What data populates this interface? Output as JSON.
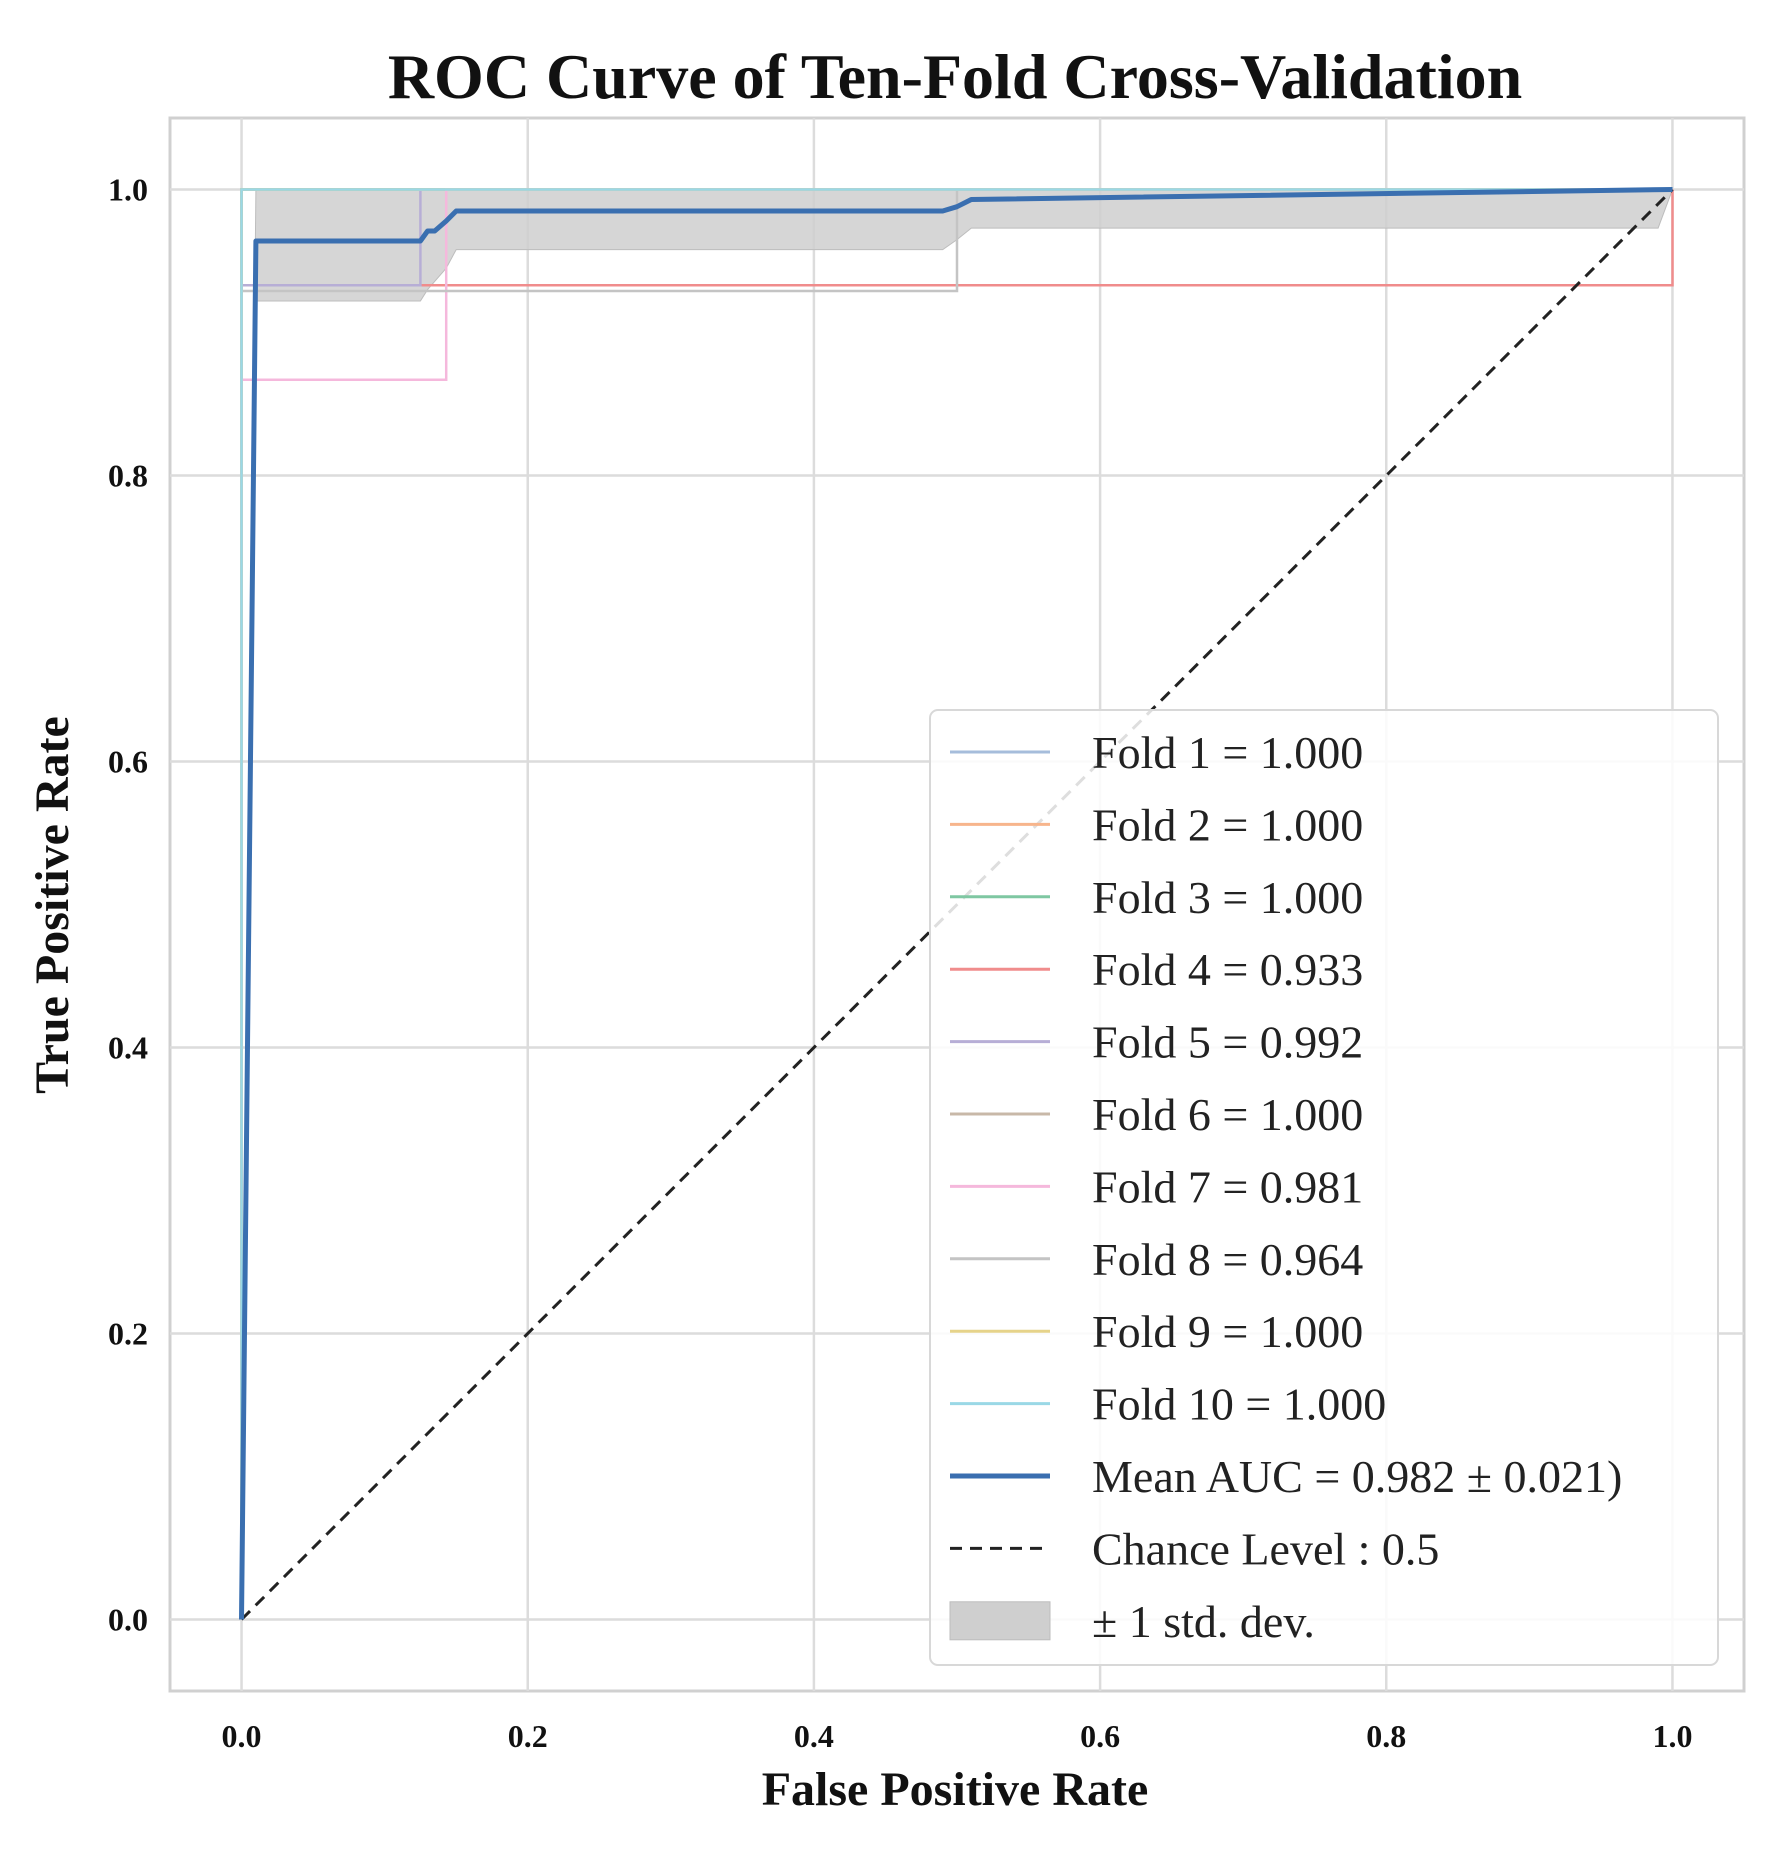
{
  "chart_data": {
    "type": "line",
    "title": "ROC Curve of Ten-Fold Cross-Validation",
    "xlabel": "False Positive Rate",
    "ylabel": "True Positive Rate",
    "xlim": [
      -0.05,
      1.05
    ],
    "ylim": [
      -0.05,
      1.05
    ],
    "xticks": [
      0.0,
      0.2,
      0.4,
      0.6,
      0.8,
      1.0
    ],
    "yticks": [
      0.0,
      0.2,
      0.4,
      0.6,
      0.8,
      1.0
    ],
    "xtick_labels": [
      "0.0",
      "0.2",
      "0.4",
      "0.6",
      "0.8",
      "1.0"
    ],
    "ytick_labels": [
      "0.0",
      "0.2",
      "0.4",
      "0.6",
      "0.8",
      "1.0"
    ],
    "grid": true,
    "legend_position": "lower-right",
    "series": [
      {
        "name": "Fold 1 = 1.000",
        "color": "#a6bddb",
        "x": [
          0,
          0,
          1
        ],
        "y": [
          0,
          1,
          1
        ]
      },
      {
        "name": "Fold 2 = 1.000",
        "color": "#f7b58c",
        "x": [
          0,
          0,
          1
        ],
        "y": [
          0,
          1,
          1
        ]
      },
      {
        "name": "Fold 3 = 1.000",
        "color": "#7fc7a2",
        "x": [
          0,
          0,
          1
        ],
        "y": [
          0,
          1,
          1
        ]
      },
      {
        "name": "Fold 4 = 0.933",
        "color": "#f08c8c",
        "x": [
          0,
          0,
          1,
          1
        ],
        "y": [
          0,
          0.933,
          0.933,
          1
        ]
      },
      {
        "name": "Fold 5 = 0.992",
        "color": "#b7aed6",
        "x": [
          0,
          0,
          0.125,
          0.125,
          1
        ],
        "y": [
          0,
          0.933,
          0.933,
          1,
          1
        ]
      },
      {
        "name": "Fold 6 = 1.000",
        "color": "#c8b8a8",
        "x": [
          0,
          0,
          1
        ],
        "y": [
          0,
          1,
          1
        ]
      },
      {
        "name": "Fold 7 = 0.981",
        "color": "#f5b8dc",
        "x": [
          0,
          0,
          0.143,
          0.143,
          1
        ],
        "y": [
          0,
          0.867,
          0.867,
          1,
          1
        ]
      },
      {
        "name": "Fold 8 = 0.964",
        "color": "#c4c4c4",
        "x": [
          0,
          0,
          0.5,
          0.5,
          1
        ],
        "y": [
          0,
          0.929,
          0.929,
          1,
          1
        ]
      },
      {
        "name": "Fold 9 = 1.000",
        "color": "#e6d38a",
        "x": [
          0,
          0,
          1
        ],
        "y": [
          0,
          1,
          1
        ]
      },
      {
        "name": "Fold 10 = 1.000",
        "color": "#9ad8e6",
        "x": [
          0,
          0,
          1
        ],
        "y": [
          0,
          1,
          1
        ]
      },
      {
        "name": "Mean AUC = 0.982 ± 0.021)",
        "color": "#3a6fb0",
        "mean": true,
        "x": [
          0,
          0.01,
          0.125,
          0.13,
          0.135,
          0.143,
          0.15,
          0.49,
          0.5,
          0.51,
          1.0
        ],
        "y": [
          0,
          0.964,
          0.964,
          0.971,
          0.971,
          0.978,
          0.985,
          0.985,
          0.988,
          0.993,
          1.0
        ]
      }
    ],
    "chance": {
      "name": "Chance Level : 0.5",
      "color": "#222222",
      "x": [
        0,
        1
      ],
      "y": [
        0,
        1
      ]
    },
    "std_band": {
      "name": "± 1 std. dev.",
      "color": "#cfcfcf",
      "x": [
        0,
        0.01,
        0.125,
        0.13,
        0.143,
        0.15,
        0.49,
        0.5,
        0.51,
        0.99,
        1.0
      ],
      "upper": [
        0,
        1,
        1,
        1,
        1,
        1,
        1,
        1,
        1,
        1,
        1
      ],
      "lower": [
        0,
        0.922,
        0.922,
        0.93,
        0.945,
        0.958,
        0.958,
        0.965,
        0.973,
        0.973,
        1.0
      ]
    }
  }
}
